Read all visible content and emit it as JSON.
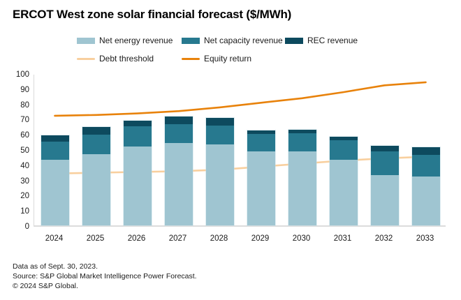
{
  "title": "ERCOT West zone solar financial forecast ($/MWh)",
  "footer": {
    "line1": "Data as of Sept. 30, 2023.",
    "line2": "Source: S&P Global Market Intelligence Power Forecast.",
    "line3": "© 2024 S&P Global."
  },
  "colors": {
    "net_energy_revenue": "#9fc5d1",
    "net_capacity_revenue": "#27798f",
    "rec_revenue": "#0d4a5e",
    "debt_threshold": "#f8cf9e",
    "equity_return": "#e8820b",
    "axis_line": "#d9d9d9",
    "text": "#1a1a1a"
  },
  "chart_data": {
    "type": "bar",
    "subtype": "stacked bars with line overlays",
    "title": "ERCOT West zone solar financial forecast ($/MWh)",
    "xlabel": "",
    "ylabel": "",
    "ylim": [
      0,
      100
    ],
    "ytick_step": 10,
    "grid": false,
    "legend_position": "top",
    "categories": [
      "2024",
      "2025",
      "2026",
      "2027",
      "2028",
      "2029",
      "2030",
      "2031",
      "2032",
      "2033"
    ],
    "series": [
      {
        "name": "Net energy revenue",
        "type": "bar",
        "color": "#9fc5d1",
        "values": [
          43,
          47,
          52,
          54,
          53,
          48.5,
          48.5,
          43,
          33,
          32
        ]
      },
      {
        "name": "Net capacity revenue",
        "type": "bar",
        "color": "#27798f",
        "values": [
          12,
          12.5,
          13,
          12.5,
          12.5,
          11.5,
          12,
          13,
          15.5,
          14.5
        ]
      },
      {
        "name": "REC revenue",
        "type": "bar",
        "color": "#0d4a5e",
        "values": [
          4,
          5,
          4,
          5,
          5,
          2.5,
          2.5,
          2.5,
          4,
          5
        ]
      },
      {
        "name": "Debt threshold",
        "type": "line",
        "color": "#f8cf9e",
        "values": [
          35,
          35.5,
          36,
          36.5,
          37.5,
          39.5,
          41.5,
          43.5,
          45,
          46
        ]
      },
      {
        "name": "Equity return",
        "type": "line",
        "color": "#e8820b",
        "values": [
          73,
          73.5,
          74.5,
          76,
          78.5,
          81.5,
          84.5,
          88.5,
          93,
          95
        ]
      }
    ],
    "stacked_totals": [
      59,
      64.5,
      69,
      71.5,
      70.5,
      62.5,
      63,
      58.5,
      52.5,
      51.5
    ]
  }
}
